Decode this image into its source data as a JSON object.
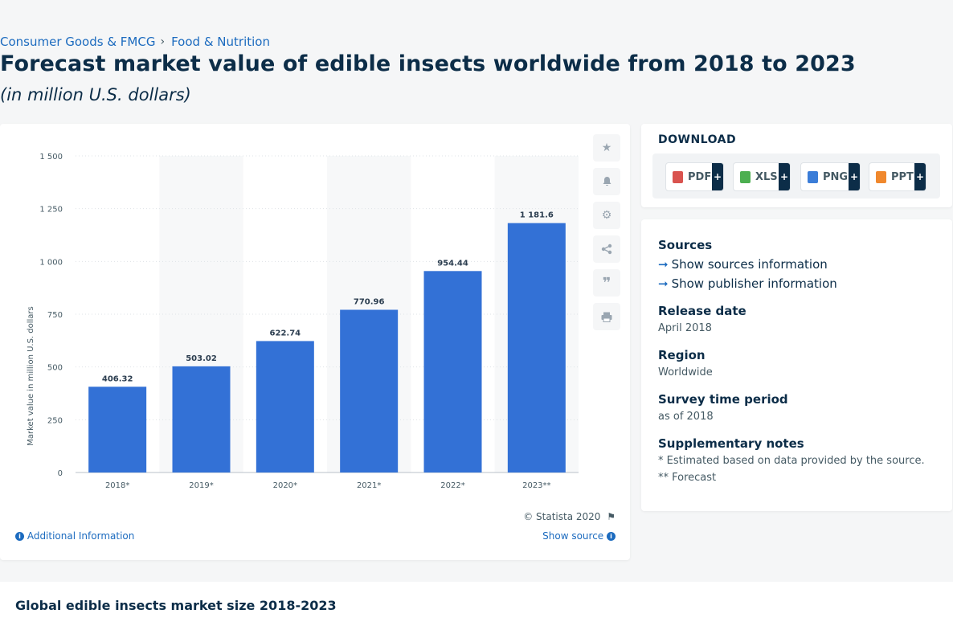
{
  "breadcrumb": {
    "items": [
      "Consumer Goods & FMCG",
      "Food & Nutrition"
    ],
    "separator": "›"
  },
  "title": "Forecast market value of edible insects worldwide from 2018 to 2023",
  "subtitle": "(in million U.S. dollars)",
  "chart_data": {
    "type": "bar",
    "categories": [
      "2018*",
      "2019*",
      "2020*",
      "2021*",
      "2022*",
      "2023**"
    ],
    "values": [
      406.32,
      503.02,
      622.74,
      770.96,
      954.44,
      1181.6
    ],
    "value_labels": [
      "406.32",
      "503.02",
      "622.74",
      "770.96",
      "954.44",
      "1 181.6"
    ],
    "ylabel": "Market value in million U.S. dollars",
    "ylim": [
      0,
      1500
    ],
    "yticks": [
      0,
      250,
      500,
      750,
      1000,
      1250,
      1500
    ],
    "ytick_labels": [
      "0",
      "250",
      "500",
      "750",
      "1 000",
      "1 250",
      "1 500"
    ],
    "grid": true,
    "bar_color": "#3371d6"
  },
  "chart_footer": {
    "credit": "© Statista 2020",
    "additional_info": "Additional Information",
    "show_source": "Show source"
  },
  "download": {
    "title": "DOWNLOAD",
    "formats": [
      {
        "label": "PDF",
        "color": "#d9534f"
      },
      {
        "label": "XLS",
        "color": "#4caf50"
      },
      {
        "label": "PNG",
        "color": "#3b7dd8"
      },
      {
        "label": "PPT",
        "color": "#f0882d"
      }
    ],
    "plus": "+"
  },
  "details": {
    "sources_label": "Sources",
    "show_sources": "Show sources information",
    "show_publisher": "Show publisher information",
    "release_date_label": "Release date",
    "release_date": "April 2018",
    "region_label": "Region",
    "region": "Worldwide",
    "survey_label": "Survey time period",
    "survey": "as of 2018",
    "notes_label": "Supplementary notes",
    "note1": "* Estimated based on data provided by the source.",
    "note2": "** Forecast"
  },
  "bottom": {
    "title": "Global edible insects market size 2018-2023"
  },
  "icons": [
    "star-icon",
    "bell-icon",
    "gear-icon",
    "share-icon",
    "quote-icon",
    "print-icon",
    "flag-icon",
    "info-icon",
    "arrow-right-icon"
  ]
}
